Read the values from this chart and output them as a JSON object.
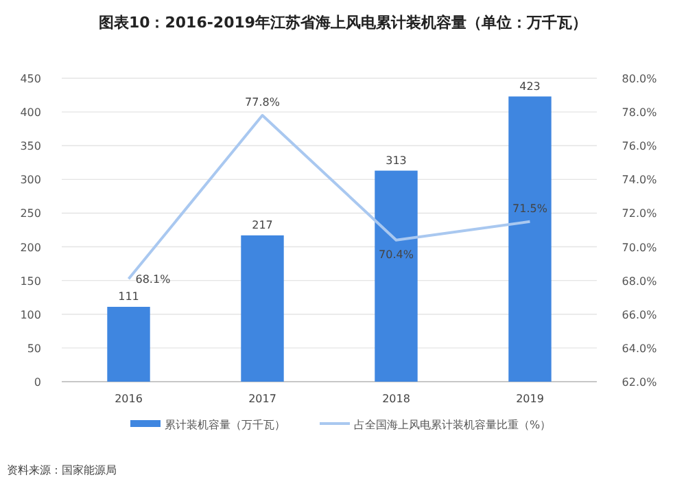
{
  "chart_data": {
    "type": "bar",
    "title": "图表10：2016-2019年江苏省海上风电累计装机容量（单位：万千瓦）",
    "categories": [
      "2016",
      "2017",
      "2018",
      "2019"
    ],
    "series": [
      {
        "name": "累计装机容量（万千瓦）",
        "color": "#3f86e0",
        "values": [
          111,
          217,
          313,
          423
        ],
        "value_labels": [
          "111",
          "217",
          "313",
          "423"
        ]
      },
      {
        "name": "占全国海上风电累计装机容量比重（%）",
        "type": "line",
        "axis": "y2",
        "color": "#a9c8f0",
        "values": [
          68.1,
          77.8,
          70.4,
          71.5
        ],
        "value_labels": [
          "68.1%",
          "77.8%",
          "70.4%",
          "71.5%"
        ]
      }
    ],
    "ylim": [
      0,
      450
    ],
    "yticks": [
      0,
      50,
      100,
      150,
      200,
      250,
      300,
      350,
      400,
      450
    ],
    "y2lim": [
      62,
      80
    ],
    "y2ticks": [
      {
        "value": 62,
        "label": "62.0%"
      },
      {
        "value": 64,
        "label": "64.0%"
      },
      {
        "value": 66,
        "label": "66.0%"
      },
      {
        "value": 68,
        "label": "68.0%"
      },
      {
        "value": 70,
        "label": "70.0%"
      },
      {
        "value": 72,
        "label": "72.0%"
      },
      {
        "value": 74,
        "label": "74.0%"
      },
      {
        "value": 76,
        "label": "76.0%"
      },
      {
        "value": 78,
        "label": "78.0%"
      },
      {
        "value": 80,
        "label": "80.0%"
      }
    ],
    "grid": "y",
    "legend": "bottom",
    "annotations": [
      "资料来源：国家能源局"
    ]
  }
}
